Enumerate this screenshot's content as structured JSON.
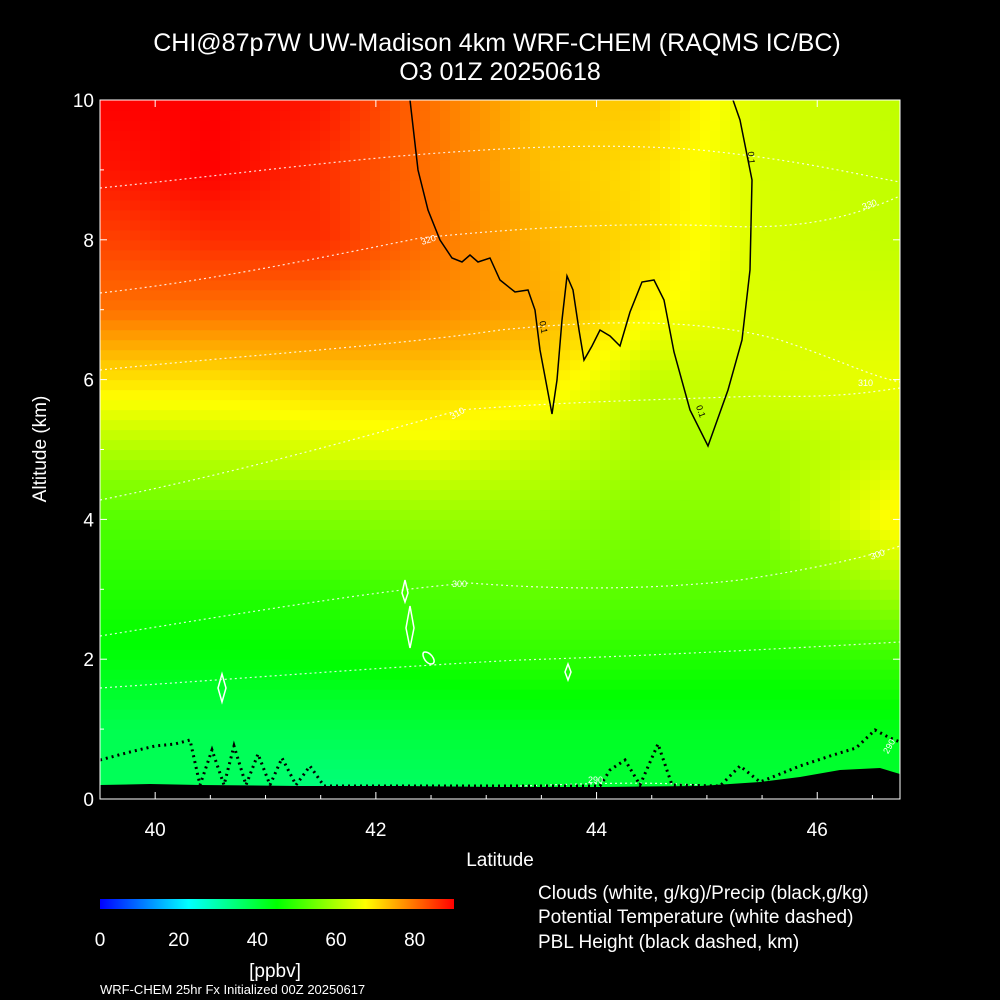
{
  "chart_data": {
    "type": "heatmap",
    "title": "CHI@87p7W UW-Madison 4km WRF-CHEM (RAQMS IC/BC)",
    "subtitle": "O3 01Z 20250618",
    "xlabel": "Latitude",
    "ylabel": "Altitude (km)",
    "xlim": [
      39.5,
      46.75
    ],
    "ylim": [
      0,
      10
    ],
    "x_ticks": [
      "40",
      "42",
      "44",
      "46"
    ],
    "x_tick_values": [
      40,
      42,
      44,
      46
    ],
    "y_ticks": [
      "0",
      "2",
      "4",
      "6",
      "8",
      "10"
    ],
    "y_tick_values": [
      0,
      2,
      4,
      6,
      8,
      10
    ],
    "grid": false,
    "colorbar": {
      "min": 0,
      "max": 90,
      "ticks": [
        "0",
        "20",
        "40",
        "60",
        "80"
      ],
      "tick_values": [
        0,
        20,
        40,
        60,
        80
      ],
      "unit": "[ppbv]",
      "colors": [
        "#0000ff",
        "#00ffff",
        "#00ff00",
        "#ffff00",
        "#ff0000"
      ]
    },
    "ozone_ppbv_grid": {
      "lat": [
        39.5,
        40.5,
        41.5,
        42.5,
        43.5,
        44.5,
        45.5,
        46.75
      ],
      "alt_km": [
        0,
        1,
        2,
        3,
        4,
        5,
        6,
        7,
        8,
        9,
        10
      ],
      "rows_by_alt": [
        [
          37,
          37,
          33,
          36,
          40,
          40,
          39,
          40
        ],
        [
          38,
          38,
          38,
          40,
          42,
          42,
          42,
          43
        ],
        [
          44,
          44,
          45,
          47,
          49,
          48,
          47,
          50
        ],
        [
          48,
          48,
          49,
          52,
          54,
          53,
          53,
          60
        ],
        [
          52,
          54,
          56,
          58,
          58,
          56,
          57,
          69
        ],
        [
          60,
          62,
          64,
          66,
          63,
          60,
          60,
          64
        ],
        [
          70,
          70,
          72,
          72,
          70,
          62,
          64,
          66
        ],
        [
          80,
          80,
          80,
          78,
          75,
          68,
          64,
          64
        ],
        [
          84,
          86,
          86,
          80,
          74,
          70,
          64,
          62
        ],
        [
          88,
          90,
          86,
          80,
          73,
          70,
          64,
          62
        ],
        [
          90,
          90,
          88,
          80,
          73,
          72,
          64,
          62
        ]
      ]
    },
    "potential_temperature_labels": [
      "320",
      "310",
      "300",
      "290",
      "330"
    ],
    "cloud_contour_label": "0.1",
    "legend": [
      "Clouds (white, g/kg)/Precip (black,g/kg)",
      "Potential Temperature (white dashed)",
      "PBL Height (black dashed, km)"
    ],
    "footer": "WRF-CHEM 25hr  Fx Initialized 00Z 20250617"
  }
}
